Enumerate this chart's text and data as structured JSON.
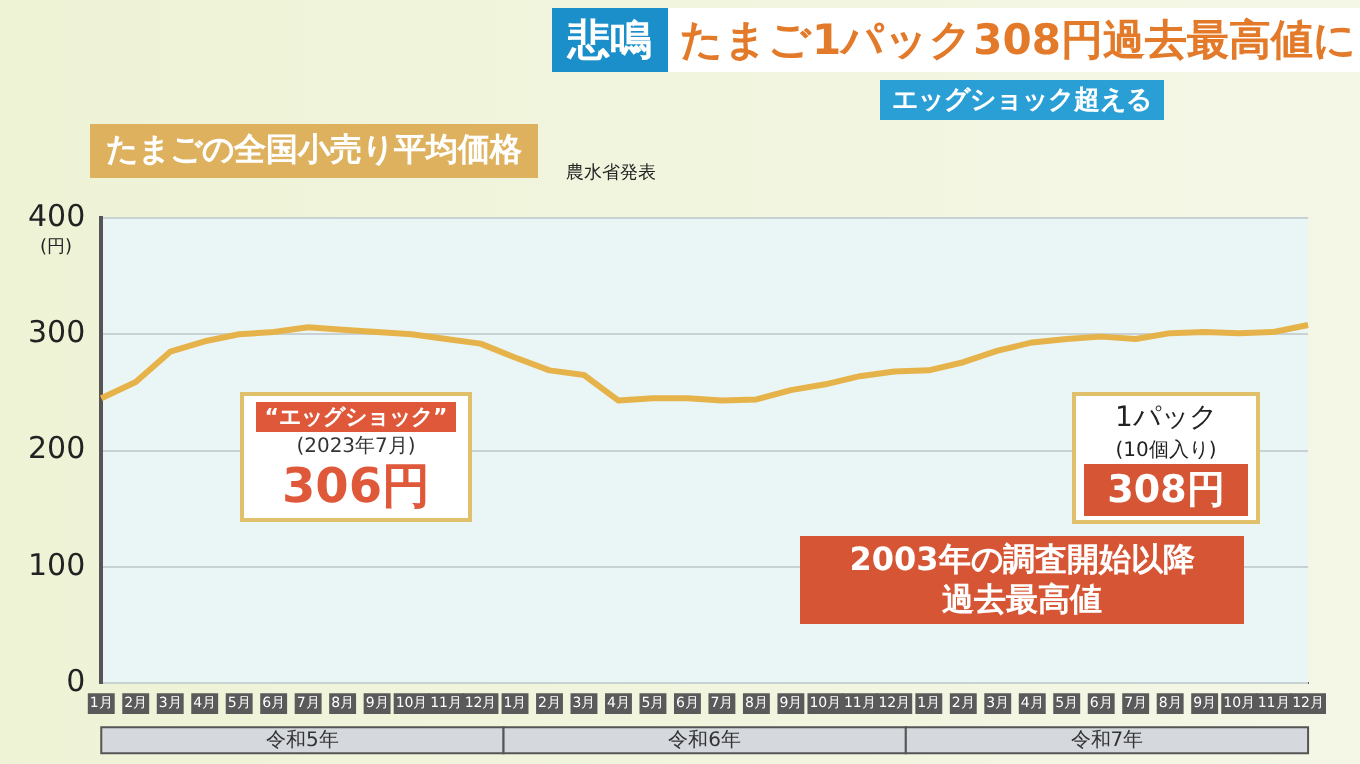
{
  "chart_data": {
    "type": "line",
    "title": "たまごの全国小売り平均価格",
    "subtitle": "農水省発表",
    "ylabel": "(円)",
    "categories": [
      "1月",
      "2月",
      "3月",
      "4月",
      "5月",
      "6月",
      "7月",
      "8月",
      "9月",
      "10月",
      "11月",
      "12月",
      "1月",
      "2月",
      "3月",
      "4月",
      "5月",
      "6月",
      "7月",
      "8月",
      "9月",
      "10月",
      "11月",
      "12月",
      "1月",
      "2月",
      "3月",
      "4月",
      "5月",
      "6月",
      "7月",
      "8月",
      "9月",
      "10月",
      "11月",
      "12月"
    ],
    "series": [
      {
        "color": "#e6b34a",
        "values": [
          245,
          259,
          285,
          294,
          300,
          302,
          306,
          304,
          302,
          300,
          296,
          292,
          280,
          269,
          265,
          243,
          245,
          245,
          243,
          244,
          252,
          257,
          264,
          268,
          269,
          276,
          286,
          293,
          296,
          298,
          296,
          301,
          302,
          301,
          302,
          308
        ]
      }
    ],
    "ylim": [
      0,
      400
    ],
    "yticks": [
      0,
      100,
      200,
      300,
      400
    ],
    "grid": "y",
    "legend": false,
    "marker": "none",
    "line_style": "solid",
    "annotations": [
      "悲鳴",
      "たまご1パック308円過去最高値に",
      "エッグショック超える",
      "“エッグショック”",
      "(2023年7月)",
      "306円",
      "1パック",
      "(10個入り)",
      "308円",
      "2003年の調査開始以降",
      "過去最高値",
      "令和5年",
      "令和6年",
      "令和7年"
    ]
  }
}
